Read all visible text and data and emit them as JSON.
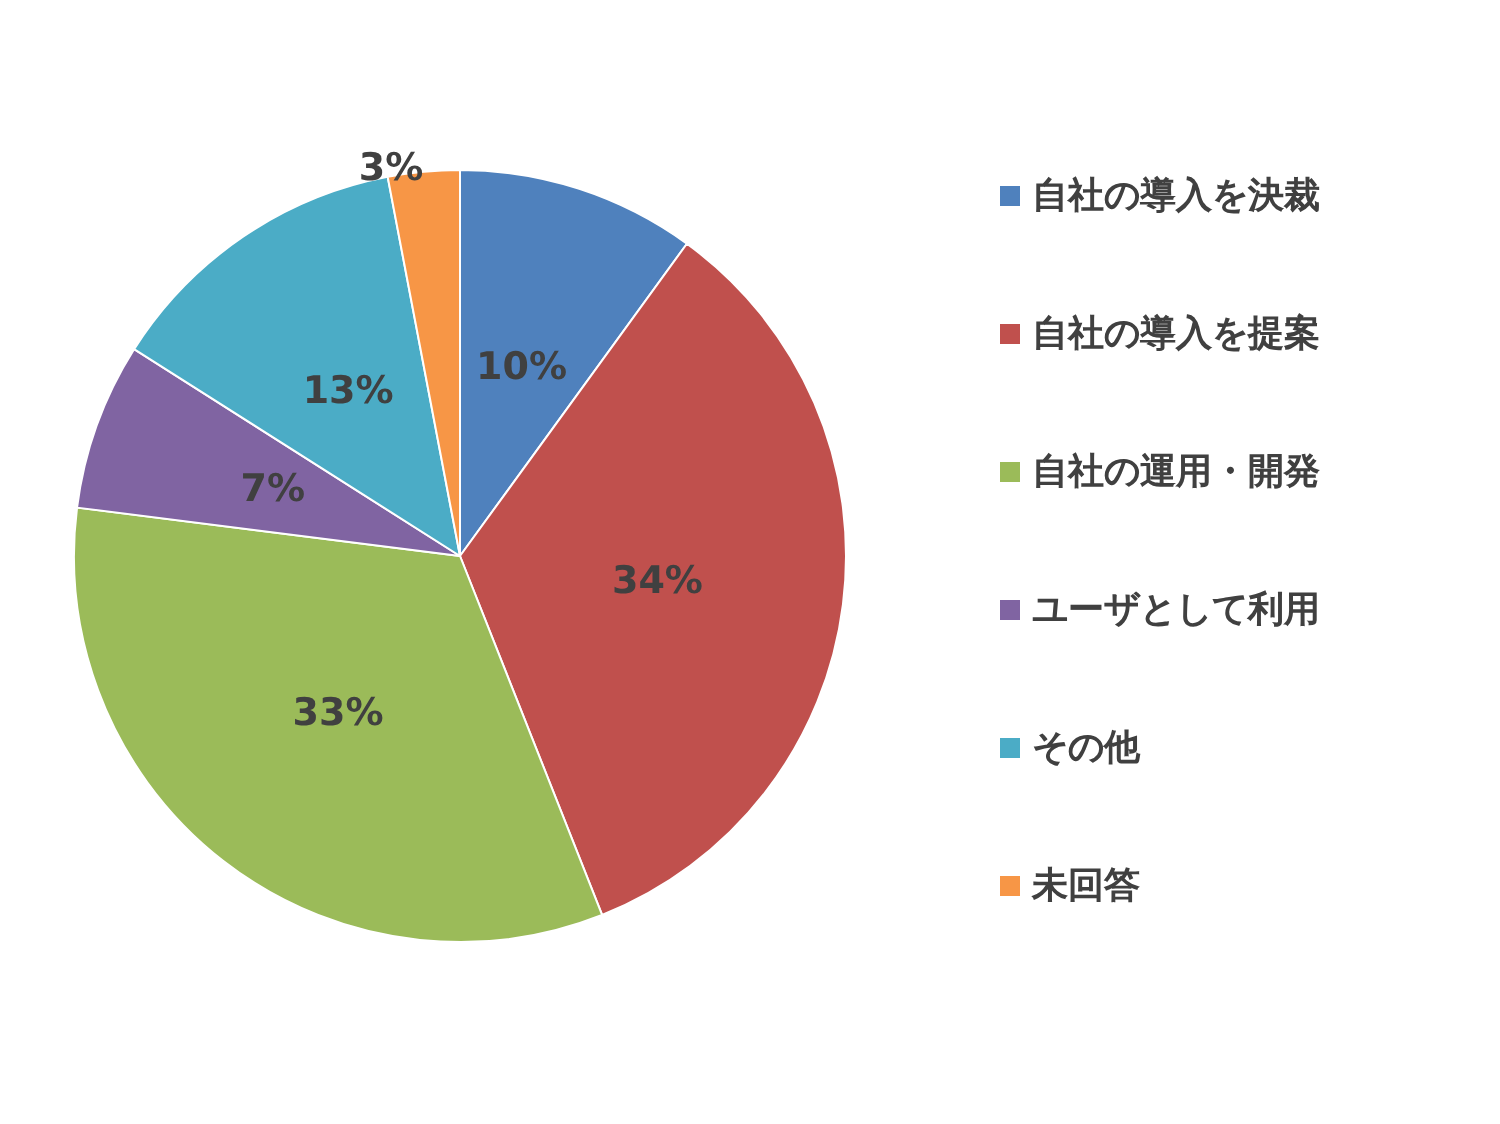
{
  "chart_data": {
    "type": "pie",
    "categories": [
      "自社の導入を決裁",
      "自社の導入を提案",
      "自社の運用・開発",
      "ユーザとして利用",
      "その他",
      "未回答"
    ],
    "values": [
      10,
      34,
      33,
      7,
      13,
      3
    ],
    "value_labels": [
      "10%",
      "34%",
      "33%",
      "7%",
      "13%",
      "3%"
    ],
    "colors": [
      "#4f81bd",
      "#c0504d",
      "#9bbb59",
      "#8064a2",
      "#4bacc6",
      "#f79646"
    ],
    "legend": "right"
  }
}
